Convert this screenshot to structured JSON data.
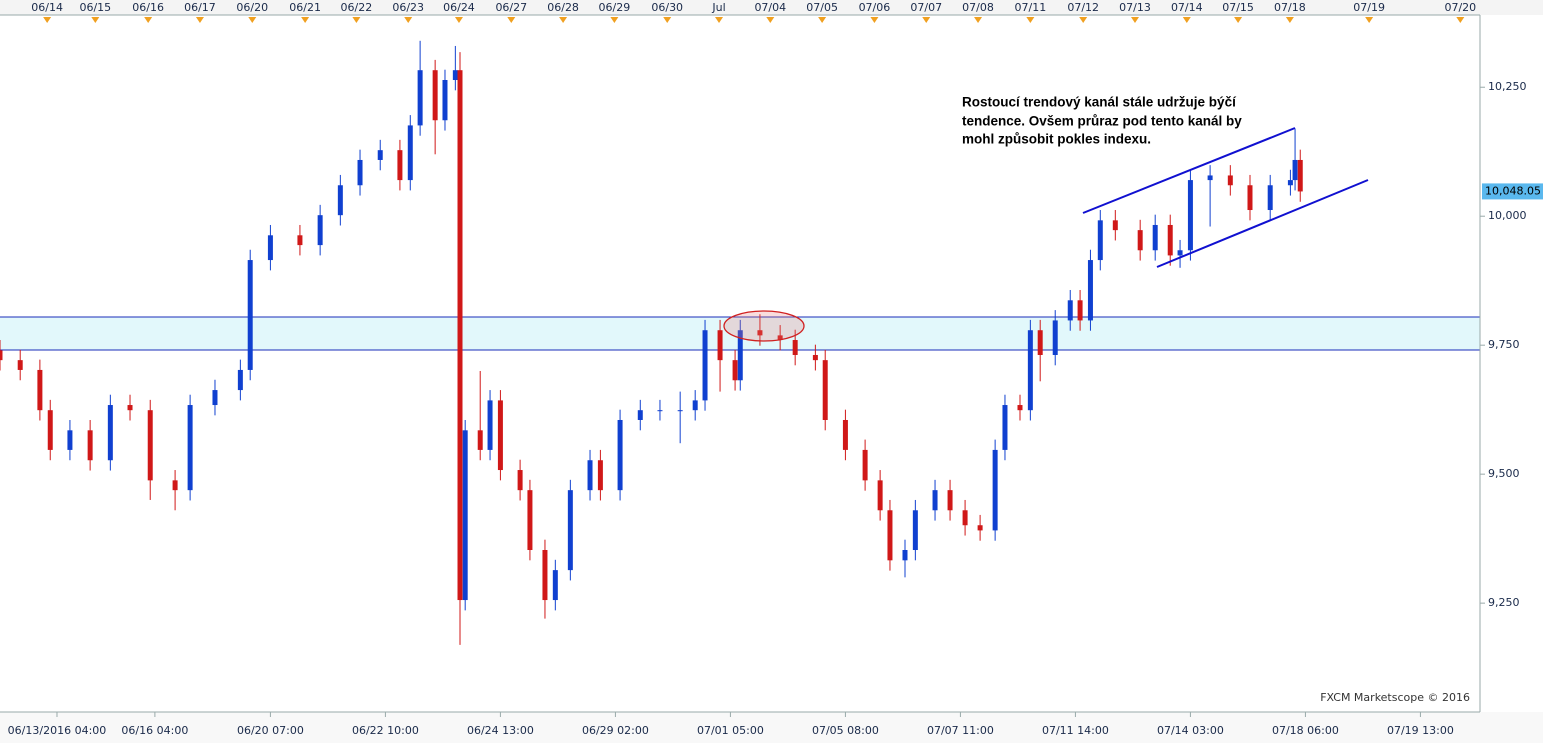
{
  "chart_data": {
    "type": "candlestick",
    "xlim": [
      0.09,
      28.66
    ],
    "ylim": [
      9039,
      10390
    ],
    "yticks": [
      {
        "value": 9250,
        "label": "9,250"
      },
      {
        "value": 9500,
        "label": "9,500"
      },
      {
        "value": 9750,
        "label": "9,750"
      },
      {
        "value": 10000,
        "label": "10,000"
      },
      {
        "value": 10250,
        "label": "10,250"
      }
    ],
    "xticks": [
      {
        "value": 1,
        "label": "06/14"
      },
      {
        "value": 1.93,
        "label": "06/15"
      },
      {
        "value": 2.95,
        "label": "06/16"
      },
      {
        "value": 3.95,
        "label": "06/17"
      },
      {
        "value": 4.96,
        "label": "06/20"
      },
      {
        "value": 5.98,
        "label": "06/21"
      },
      {
        "value": 6.97,
        "label": "06/22"
      },
      {
        "value": 7.97,
        "label": "06/23"
      },
      {
        "value": 8.95,
        "label": "06/24"
      },
      {
        "value": 9.96,
        "label": "06/27"
      },
      {
        "value": 10.96,
        "label": "06/28"
      },
      {
        "value": 11.95,
        "label": "06/29"
      },
      {
        "value": 12.97,
        "label": "06/30"
      },
      {
        "value": 13.97,
        "label": "Jul"
      },
      {
        "value": 14.96,
        "label": "07/04"
      },
      {
        "value": 15.96,
        "label": "07/05"
      },
      {
        "value": 16.97,
        "label": "07/06"
      },
      {
        "value": 17.97,
        "label": "07/07"
      },
      {
        "value": 18.97,
        "label": "07/08"
      },
      {
        "value": 19.98,
        "label": "07/11"
      },
      {
        "value": 21.0,
        "label": "07/12"
      },
      {
        "value": 22.0,
        "label": "07/13"
      },
      {
        "value": 23.0,
        "label": "07/14"
      },
      {
        "value": 23.99,
        "label": "07/15"
      },
      {
        "value": 24.99,
        "label": "07/18"
      },
      {
        "value": 26.52,
        "label": "07/19"
      },
      {
        "value": 28.28,
        "label": "07/20"
      }
    ],
    "x2ticks": [
      {
        "value": 1.19,
        "label": "06/13/2016 04:00"
      },
      {
        "value": 3.08,
        "label": "06/16 04:00"
      },
      {
        "value": 5.31,
        "label": "06/20 07:00"
      },
      {
        "value": 7.53,
        "label": "06/22 10:00"
      },
      {
        "value": 9.75,
        "label": "06/24 13:00"
      },
      {
        "value": 11.97,
        "label": "06/29 02:00"
      },
      {
        "value": 14.19,
        "label": "07/01 05:00"
      },
      {
        "value": 16.41,
        "label": "07/05 08:00"
      },
      {
        "value": 18.63,
        "label": "07/07 11:00"
      },
      {
        "value": 20.85,
        "label": "07/11 14:00"
      },
      {
        "value": 23.07,
        "label": "07/14 03:00"
      },
      {
        "value": 25.29,
        "label": "07/18 06:00"
      },
      {
        "value": 27.51,
        "label": "07/19 13:00"
      }
    ],
    "up_color": "#1040d0",
    "down_color": "#d01818",
    "x": [
      0.09,
      0.48,
      0.86,
      1.06,
      1.44,
      1.83,
      2.22,
      2.6,
      2.99,
      3.47,
      3.76,
      4.24,
      4.73,
      4.92,
      5.31,
      5.88,
      6.27,
      6.66,
      7.04,
      7.43,
      7.81,
      8.01,
      8.2,
      8.49,
      8.68,
      8.88,
      8.97,
      9.07,
      9.36,
      9.55,
      9.75,
      10.13,
      10.32,
      10.61,
      10.81,
      11.1,
      11.48,
      11.68,
      12.06,
      12.45,
      12.83,
      13.22,
      13.51,
      13.7,
      13.99,
      14.28,
      14.38,
      14.76,
      15.15,
      15.44,
      15.83,
      16.02,
      16.41,
      16.79,
      17.08,
      17.27,
      17.56,
      17.76,
      18.14,
      18.43,
      18.72,
      19.01,
      19.3,
      19.49,
      19.78,
      19.98,
      20.17,
      20.46,
      20.75,
      20.94,
      21.14,
      21.33,
      21.62,
      22.1,
      22.39,
      22.68,
      22.87,
      23.07,
      23.45,
      23.84,
      24.22,
      24.61,
      25.0,
      25.09,
      25.19
    ],
    "open": [
      9740,
      9721,
      9702,
      9624,
      9547,
      9585,
      9527,
      9634,
      9624,
      9488,
      9469,
      9634,
      9663,
      9702,
      9915,
      9963,
      9944,
      10002,
      10060,
      10109,
      10128,
      10070,
      10176,
      10283,
      10186,
      10264,
      10283,
      9256,
      9585,
      9547,
      9643,
      9508,
      9469,
      9353,
      9256,
      9314,
      9469,
      9527,
      9469,
      9605,
      9624,
      9624,
      9624,
      9643,
      9779,
      9721,
      9682,
      9779,
      9769,
      9760,
      9731,
      9721,
      9605,
      9547,
      9488,
      9430,
      9333,
      9353,
      9430,
      9469,
      9430,
      9401,
      9391,
      9547,
      9634,
      9624,
      9779,
      9731,
      9798,
      9837,
      9798,
      9915,
      9992,
      9973,
      9934,
      9983,
      9924,
      9934,
      10070,
      10079,
      10060,
      10012,
      10060,
      10070,
      10109
    ],
    "high": [
      9760,
      9741,
      9722,
      9644,
      9605,
      9605,
      9654,
      9654,
      9644,
      9508,
      9654,
      9683,
      9722,
      9935,
      9983,
      9983,
      10022,
      10080,
      10129,
      10148,
      10148,
      10196,
      10340,
      10303,
      10284,
      10330,
      10318,
      9605,
      9700,
      9663,
      9663,
      9528,
      9489,
      9373,
      9334,
      9489,
      9547,
      9547,
      9625,
      9644,
      9644,
      9660,
      9663,
      9799,
      9799,
      9741,
      9799,
      9810,
      9789,
      9780,
      9751,
      9741,
      9625,
      9567,
      9508,
      9450,
      9373,
      9450,
      9489,
      9489,
      9450,
      9421,
      9567,
      9654,
      9654,
      9799,
      9799,
      9818,
      9857,
      9857,
      9935,
      10012,
      10012,
      9993,
      10003,
      10003,
      9954,
      10090,
      10099,
      10099,
      10080,
      10080,
      10090,
      10170,
      10129
    ],
    "low": [
      9701,
      9682,
      9604,
      9527,
      9527,
      9507,
      9507,
      9604,
      9450,
      9430,
      9449,
      9614,
      9643,
      9682,
      9895,
      9924,
      9924,
      9982,
      10040,
      10089,
      10050,
      10050,
      10156,
      10120,
      10166,
      10244,
      9169,
      9236,
      9527,
      9527,
      9488,
      9449,
      9333,
      9220,
      9236,
      9294,
      9449,
      9449,
      9449,
      9585,
      9604,
      9560,
      9604,
      9623,
      9660,
      9662,
      9662,
      9749,
      9740,
      9711,
      9701,
      9585,
      9527,
      9468,
      9410,
      9313,
      9300,
      9333,
      9410,
      9410,
      9381,
      9371,
      9371,
      9527,
      9604,
      9604,
      9680,
      9711,
      9778,
      9778,
      9778,
      9895,
      9953,
      9914,
      9914,
      9904,
      9900,
      9914,
      9980,
      10040,
      9992,
      9992,
      10040,
      10050,
      10028
    ],
    "close": [
      9721,
      9702,
      9624,
      9547,
      9585,
      9527,
      9634,
      9624,
      9488,
      9469,
      9634,
      9663,
      9702,
      9915,
      9963,
      9944,
      10002,
      10060,
      10109,
      10128,
      10070,
      10176,
      10283,
      10186,
      10264,
      10283,
      9256,
      9585,
      9547,
      9643,
      9508,
      9469,
      9353,
      9256,
      9314,
      9469,
      9527,
      9469,
      9605,
      9624,
      9624,
      9624,
      9643,
      9779,
      9721,
      9682,
      9779,
      9769,
      9760,
      9731,
      9721,
      9605,
      9547,
      9488,
      9430,
      9333,
      9353,
      9430,
      9469,
      9430,
      9401,
      9391,
      9547,
      9634,
      9624,
      9779,
      9731,
      9798,
      9837,
      9798,
      9915,
      9992,
      9973,
      9934,
      9983,
      9924,
      9934,
      10070,
      10079,
      10060,
      10012,
      10060,
      10070,
      10109,
      10048
    ],
    "last_price": {
      "value": 10048.05,
      "label": "10,048.05"
    },
    "annotation": [
      "Rostoucí trendový kanál stále udržuje býčí",
      "tendence. Ovšem průraz pod tento kanál by",
      "mohl způsobit pokles indexu."
    ],
    "watermark": "FXCM Marketscope © 2016"
  }
}
